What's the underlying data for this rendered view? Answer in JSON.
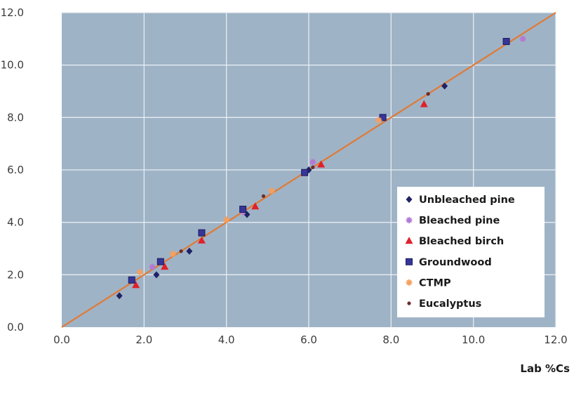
{
  "chart_data": {
    "type": "scatter",
    "title": "",
    "xlabel": "Lab %Cs",
    "ylabel": "",
    "xlim": [
      0,
      12
    ],
    "ylim": [
      0,
      12
    ],
    "x_ticks": [
      "0.0",
      "2.0",
      "4.0",
      "6.0",
      "8.0",
      "10.0",
      "12.0"
    ],
    "y_ticks": [
      "0.0",
      "2.0",
      "4.0",
      "6.0",
      "8.0",
      "10.0",
      "12.0"
    ],
    "grid": true,
    "legend_position": "bottom-right",
    "plot_background": "#9fb3c6",
    "fit_line": {
      "x": [
        0,
        12
      ],
      "y": [
        0,
        12
      ],
      "color": "#e07a35"
    },
    "series": [
      {
        "name": "Unbleached pine",
        "marker": "diamond",
        "color": "#1f2266",
        "points": [
          [
            1.4,
            1.2
          ],
          [
            2.3,
            2.0
          ],
          [
            3.1,
            2.9
          ],
          [
            4.5,
            4.3
          ],
          [
            6.0,
            6.0
          ],
          [
            9.3,
            9.2
          ]
        ]
      },
      {
        "name": "Bleached pine",
        "marker": "star",
        "color": "#b27ad3",
        "points": [
          [
            2.2,
            2.3
          ],
          [
            4.4,
            4.4
          ],
          [
            6.1,
            6.3
          ],
          [
            11.2,
            11.0
          ]
        ]
      },
      {
        "name": "Bleached birch",
        "marker": "triangle",
        "color": "#e0202a",
        "points": [
          [
            1.8,
            1.6
          ],
          [
            2.5,
            2.3
          ],
          [
            3.4,
            3.3
          ],
          [
            4.7,
            4.6
          ],
          [
            6.3,
            6.2
          ],
          [
            8.8,
            8.5
          ]
        ]
      },
      {
        "name": "Groundwood",
        "marker": "square",
        "color": "#35359a",
        "points": [
          [
            1.7,
            1.8
          ],
          [
            2.4,
            2.5
          ],
          [
            3.4,
            3.6
          ],
          [
            4.4,
            4.5
          ],
          [
            5.9,
            5.9
          ],
          [
            7.8,
            8.0
          ],
          [
            10.8,
            10.9
          ]
        ]
      },
      {
        "name": "CTMP",
        "marker": "star",
        "color": "#f3a060",
        "points": [
          [
            1.9,
            2.1
          ],
          [
            2.7,
            2.8
          ],
          [
            4.0,
            4.1
          ],
          [
            5.1,
            5.2
          ],
          [
            7.7,
            7.9
          ]
        ]
      },
      {
        "name": "Eucalyptus",
        "marker": "dot",
        "color": "#6b2d2d",
        "points": [
          [
            2.9,
            2.9
          ],
          [
            4.9,
            5.0
          ],
          [
            6.1,
            6.1
          ],
          [
            8.9,
            8.9
          ]
        ]
      }
    ]
  }
}
